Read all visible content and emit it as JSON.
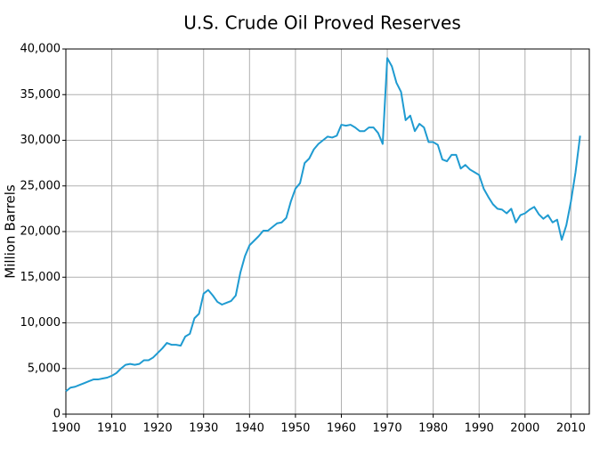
{
  "chart_data": {
    "type": "line",
    "title": "U.S. Crude Oil Proved Reserves",
    "y_label": "Million Barrels",
    "x": [
      1900,
      1901,
      1902,
      1903,
      1904,
      1905,
      1906,
      1907,
      1908,
      1909,
      1910,
      1911,
      1912,
      1913,
      1914,
      1915,
      1916,
      1917,
      1918,
      1919,
      1920,
      1921,
      1922,
      1923,
      1924,
      1925,
      1926,
      1927,
      1928,
      1929,
      1930,
      1931,
      1932,
      1933,
      1934,
      1935,
      1936,
      1937,
      1938,
      1939,
      1940,
      1941,
      1942,
      1943,
      1944,
      1945,
      1946,
      1947,
      1948,
      1949,
      1950,
      1951,
      1952,
      1953,
      1954,
      1955,
      1956,
      1957,
      1958,
      1959,
      1960,
      1961,
      1962,
      1963,
      1964,
      1965,
      1966,
      1967,
      1968,
      1969,
      1970,
      1971,
      1972,
      1973,
      1974,
      1975,
      1976,
      1977,
      1978,
      1979,
      1980,
      1981,
      1982,
      1983,
      1984,
      1985,
      1986,
      1987,
      1988,
      1989,
      1990,
      1991,
      1992,
      1993,
      1994,
      1995,
      1996,
      1997,
      1998,
      1999,
      2000,
      2001,
      2002,
      2003,
      2004,
      2005,
      2006,
      2007,
      2008,
      2009,
      2010,
      2011,
      2012
    ],
    "series": [
      {
        "name": "Proved Reserves",
        "color": "#1f9bd1",
        "values": [
          2500,
          2900,
          3000,
          3200,
          3400,
          3600,
          3800,
          3800,
          3900,
          4000,
          4200,
          4500,
          5000,
          5400,
          5500,
          5400,
          5500,
          5900,
          5900,
          6200,
          6700,
          7200,
          7800,
          7600,
          7600,
          7500,
          8500,
          8800,
          10500,
          11000,
          13200,
          13600,
          13000,
          12300,
          12000,
          12200,
          12400,
          13000,
          15500,
          17300,
          18500,
          19000,
          19500,
          20100,
          20100,
          20500,
          20900,
          21000,
          21500,
          23300,
          24700,
          25300,
          27500,
          28000,
          29000,
          29600,
          30000,
          30400,
          30300,
          30500,
          31700,
          31600,
          31700,
          31400,
          31000,
          31000,
          31400,
          31400,
          30800,
          29600,
          39000,
          38100,
          36300,
          35300,
          32200,
          32700,
          31000,
          31800,
          31400,
          29800,
          29800,
          29500,
          27900,
          27700,
          28400,
          28400,
          26900,
          27300,
          26800,
          26500,
          26200,
          24700,
          23800,
          23000,
          22500,
          22400,
          22000,
          22500,
          21000,
          21800,
          22000,
          22400,
          22700,
          21900,
          21400,
          21800,
          21000,
          21300,
          19100,
          20700,
          23300,
          26500,
          30500
        ]
      }
    ],
    "xlim": [
      1900,
      2014
    ],
    "ylim": [
      0,
      40000
    ],
    "xticks": [
      1900,
      1910,
      1920,
      1930,
      1940,
      1950,
      1960,
      1970,
      1980,
      1990,
      2000,
      2010
    ],
    "yticks": [
      0,
      {
        "value": 5000,
        "label": "5,000"
      },
      {
        "value": 10000,
        "label": "10,000"
      },
      {
        "value": 15000,
        "label": "15,000"
      },
      {
        "value": 20000,
        "label": "20,000"
      },
      {
        "value": 25000,
        "label": "25,000"
      },
      {
        "value": 30000,
        "label": "30,000"
      },
      {
        "value": 35000,
        "label": "35,000"
      },
      {
        "value": 40000,
        "label": "40,000"
      }
    ],
    "grid": true
  }
}
